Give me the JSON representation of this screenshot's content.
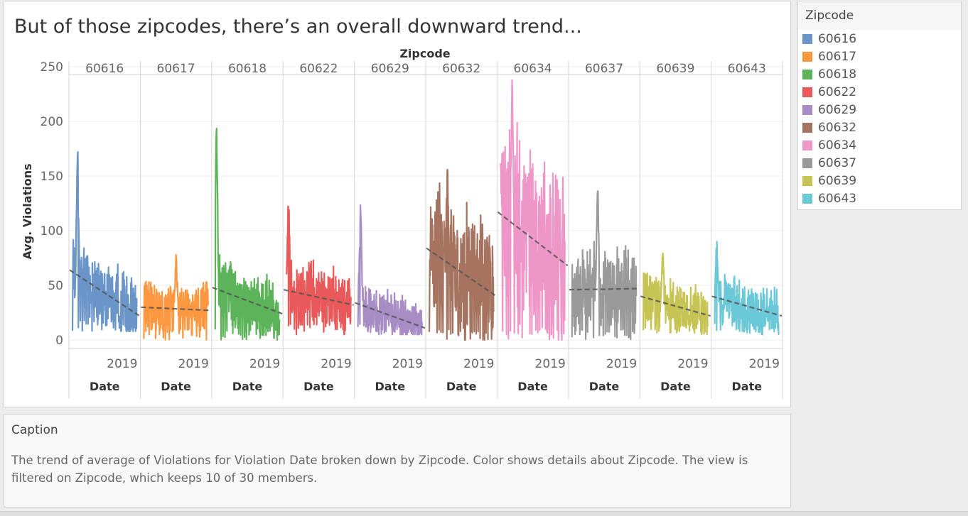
{
  "title": "But of those zipcodes, there’s an overall downward trend...",
  "chart_data": {
    "type": "line",
    "facet_header": "Zipcode",
    "ylabel": "Avg. Violations",
    "xlabel": "Date",
    "x_tick": "2019",
    "ylim": [
      0,
      250
    ],
    "yticks": [
      0,
      50,
      100,
      150,
      200,
      250
    ],
    "grid": true,
    "legend_position": "right",
    "trend_lines": "dashed",
    "series": [
      {
        "name": "60616",
        "color": "#6a95c8",
        "trend": [
          64,
          22
        ],
        "approx_range": [
          8,
          177
        ],
        "peak": 177,
        "spike_pos": 0.08,
        "base": 44,
        "amp": 32
      },
      {
        "name": "60617",
        "color": "#fd9840",
        "trend": [
          30,
          27
        ],
        "approx_range": [
          0,
          78
        ],
        "peak": 78,
        "spike_pos": 0.5,
        "base": 32,
        "amp": 24
      },
      {
        "name": "60618",
        "color": "#5db35a",
        "trend": [
          48,
          24
        ],
        "approx_range": [
          0,
          202
        ],
        "peak": 202,
        "spike_pos": 0.02,
        "base": 42,
        "amp": 28
      },
      {
        "name": "60622",
        "color": "#e9595a",
        "trend": [
          46,
          32
        ],
        "approx_range": [
          5,
          136
        ],
        "peak": 136,
        "spike_pos": 0.03,
        "base": 45,
        "amp": 30
      },
      {
        "name": "60629",
        "color": "#a78cc6",
        "trend": [
          34,
          11
        ],
        "approx_range": [
          5,
          124
        ],
        "peak": 124,
        "spike_pos": 0.04,
        "base": 30,
        "amp": 22
      },
      {
        "name": "60632",
        "color": "#a5735f",
        "trend": [
          84,
          40
        ],
        "approx_range": [
          0,
          168
        ],
        "peak": 168,
        "spike_pos": 0.28,
        "base": 80,
        "amp": 60
      },
      {
        "name": "60634",
        "color": "#ef96c9",
        "trend": [
          117,
          68
        ],
        "approx_range": [
          0,
          244
        ],
        "peak": 244,
        "spike_pos": 0.18,
        "base": 100,
        "amp": 80
      },
      {
        "name": "60637",
        "color": "#9a9a9a",
        "trend": [
          46,
          47
        ],
        "approx_range": [
          0,
          143
        ],
        "peak": 143,
        "spike_pos": 0.4,
        "base": 50,
        "amp": 38
      },
      {
        "name": "60639",
        "color": "#c6c453",
        "trend": [
          40,
          22
        ],
        "approx_range": [
          5,
          85
        ],
        "peak": 85,
        "spike_pos": 0.3,
        "base": 38,
        "amp": 24
      },
      {
        "name": "60643",
        "color": "#6ac8d8",
        "trend": [
          40,
          22
        ],
        "approx_range": [
          5,
          90
        ],
        "peak": 90,
        "spike_pos": 0.03,
        "base": 35,
        "amp": 22
      }
    ]
  },
  "legend": {
    "title": "Zipcode",
    "items": [
      {
        "label": "60616",
        "color": "#6a95c8"
      },
      {
        "label": "60617",
        "color": "#fd9840"
      },
      {
        "label": "60618",
        "color": "#5db35a"
      },
      {
        "label": "60622",
        "color": "#e9595a"
      },
      {
        "label": "60629",
        "color": "#a78cc6"
      },
      {
        "label": "60632",
        "color": "#a5735f"
      },
      {
        "label": "60634",
        "color": "#ef96c9"
      },
      {
        "label": "60637",
        "color": "#9a9a9a"
      },
      {
        "label": "60639",
        "color": "#c6c453"
      },
      {
        "label": "60643",
        "color": "#6ac8d8"
      }
    ]
  },
  "caption": {
    "title": "Caption",
    "text": "The trend of average of Violations for Violation Date broken down by Zipcode.  Color shows details about Zipcode. The view is filtered on Zipcode, which keeps 10 of 30 members."
  }
}
